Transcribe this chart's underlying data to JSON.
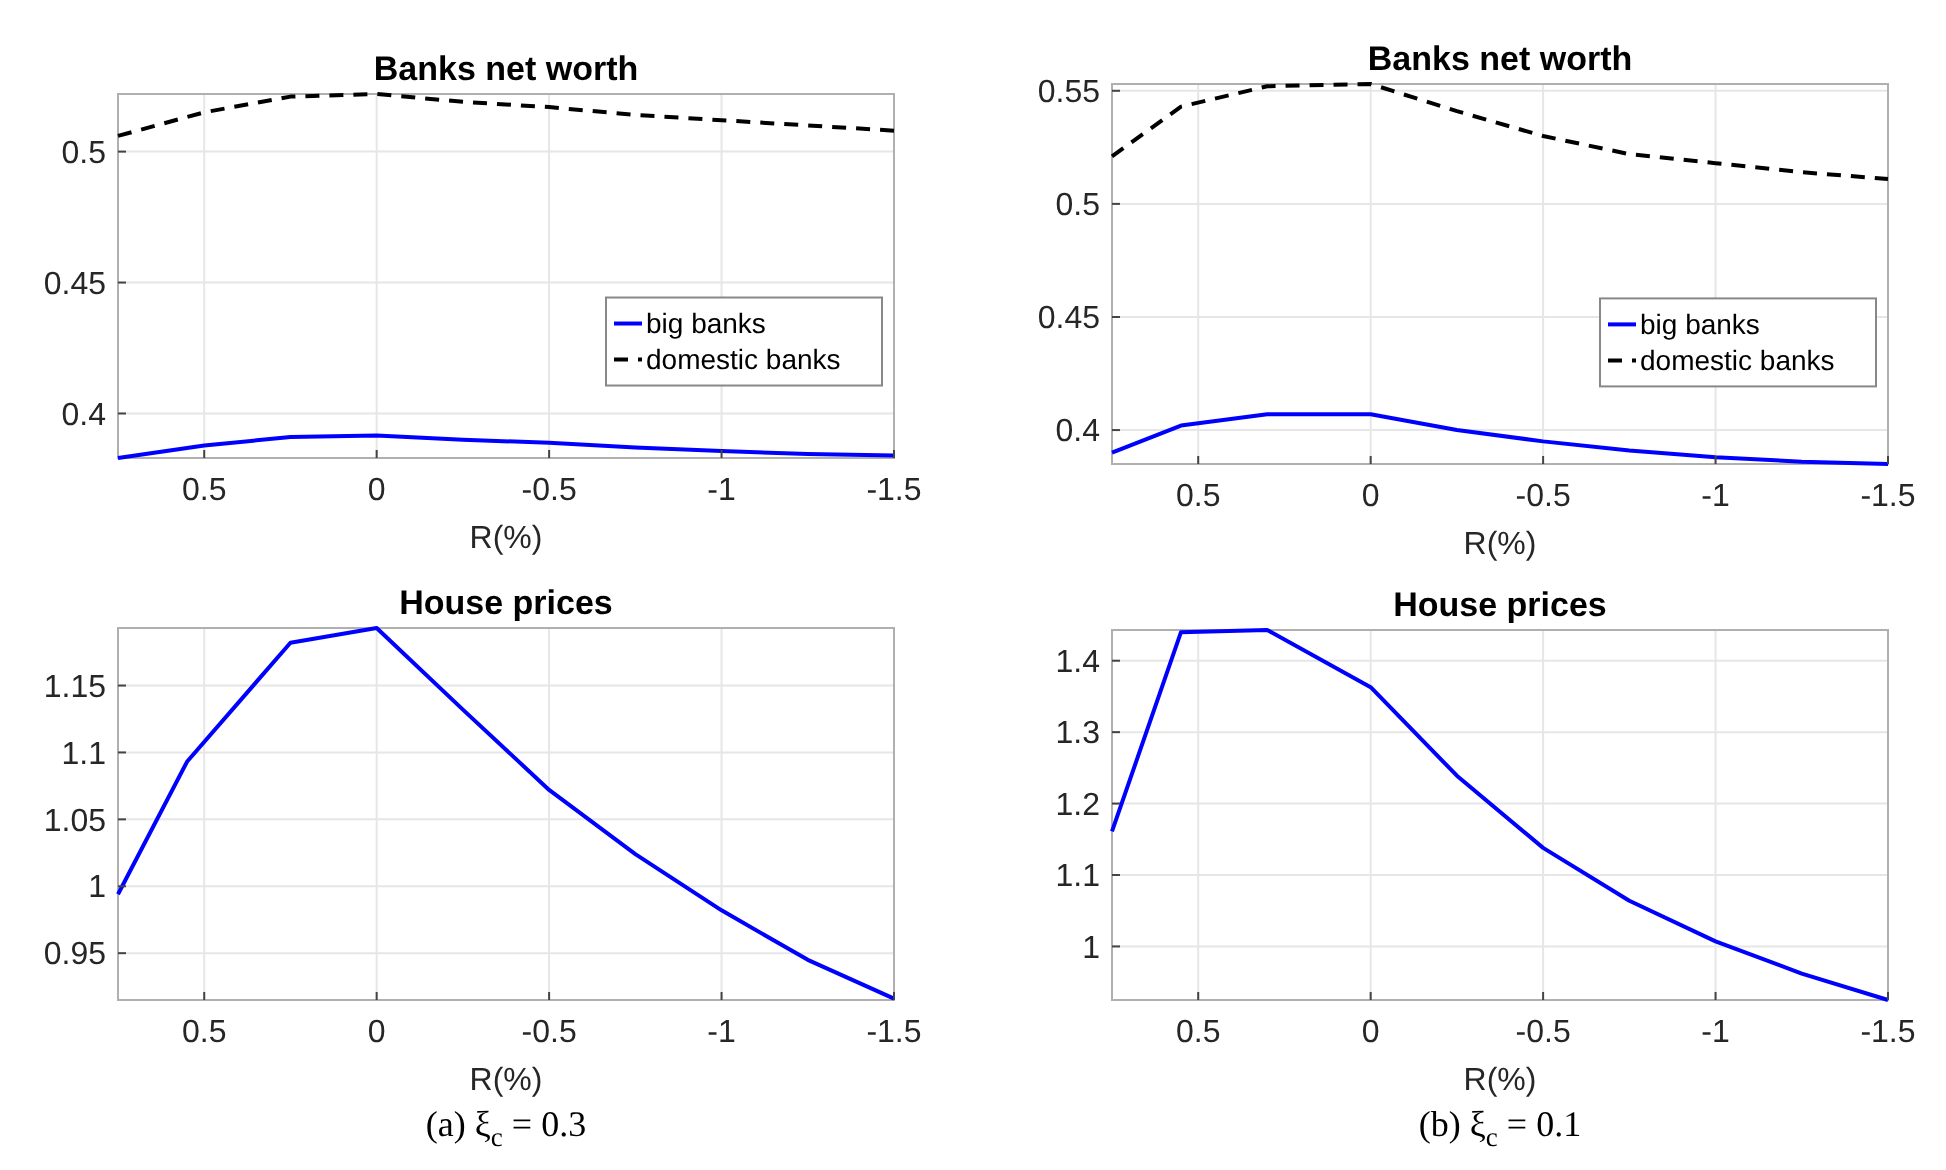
{
  "chart_data": [
    {
      "type": "line",
      "title": "Banks net worth",
      "xlabel": "R(%)",
      "x": [
        0.75,
        0.5,
        0.25,
        0,
        -0.25,
        -0.5,
        -0.75,
        -1,
        -1.25,
        -1.5
      ],
      "xlim": [
        0.75,
        -1.5
      ],
      "xticks": [
        0.5,
        0,
        -0.5,
        -1,
        -1.5
      ],
      "ylim": [
        0.383,
        0.522
      ],
      "yticks": [
        0.4,
        0.45,
        0.5
      ],
      "grid": true,
      "legend": "bottom right",
      "series": [
        {
          "name": "big banks",
          "color": "#0000ff",
          "line_style": "solid",
          "values": [
            0.383,
            0.3878,
            0.391,
            0.3916,
            0.39,
            0.3888,
            0.387,
            0.3857,
            0.3845,
            0.384
          ]
        },
        {
          "name": "domestic banks",
          "color": "#000000",
          "line_style": "dashed",
          "values": [
            0.506,
            0.515,
            0.521,
            0.522,
            0.519,
            0.517,
            0.514,
            0.512,
            0.51,
            0.508
          ]
        }
      ]
    },
    {
      "type": "line",
      "title": "Banks net worth",
      "xlabel": "R(%)",
      "x": [
        0.75,
        0.55,
        0.3,
        0,
        -0.25,
        -0.5,
        -0.75,
        -1,
        -1.25,
        -1.5
      ],
      "xlim": [
        0.75,
        -1.5
      ],
      "xticks": [
        0.5,
        0,
        -0.5,
        -1,
        -1.5
      ],
      "ylim": [
        0.385,
        0.553
      ],
      "yticks": [
        0.4,
        0.45,
        0.5,
        0.55
      ],
      "grid": true,
      "legend": "bottom right",
      "series": [
        {
          "name": "big banks",
          "color": "#0000ff",
          "line_style": "solid",
          "values": [
            0.39,
            0.402,
            0.407,
            0.407,
            0.4,
            0.395,
            0.391,
            0.388,
            0.386,
            0.385
          ]
        },
        {
          "name": "domestic banks",
          "color": "#000000",
          "line_style": "dashed",
          "values": [
            0.521,
            0.543,
            0.552,
            0.553,
            0.541,
            0.53,
            0.522,
            0.518,
            0.514,
            0.511
          ]
        }
      ]
    },
    {
      "type": "line",
      "title": "House prices",
      "xlabel": "R(%)",
      "x": [
        0.75,
        0.55,
        0.25,
        0,
        -0.25,
        -0.5,
        -0.75,
        -1,
        -1.25,
        -1.5
      ],
      "xlim": [
        0.75,
        -1.5
      ],
      "xticks": [
        0.5,
        0,
        -0.5,
        -1,
        -1.5
      ],
      "ylim": [
        0.915,
        1.193
      ],
      "yticks": [
        0.95,
        1,
        1.05,
        1.1,
        1.15
      ],
      "grid": true,
      "annotations": [
        "(a) ξ$_{c}$ = 0.3"
      ],
      "series": [
        {
          "color": "#0000ff",
          "line_style": "solid",
          "values": [
            0.994,
            1.093,
            1.182,
            1.193,
            1.132,
            1.072,
            1.024,
            0.982,
            0.945,
            0.916
          ]
        }
      ]
    },
    {
      "type": "line",
      "title": "House prices",
      "xlabel": "R(%)",
      "x": [
        0.75,
        0.55,
        0.3,
        0,
        -0.25,
        -0.5,
        -0.75,
        -1,
        -1.25,
        -1.5
      ],
      "xlim": [
        0.75,
        -1.5
      ],
      "xticks": [
        0.5,
        0,
        -0.5,
        -1,
        -1.5
      ],
      "ylim": [
        0.925,
        1.443
      ],
      "yticks": [
        1,
        1.1,
        1.2,
        1.3,
        1.4
      ],
      "grid": true,
      "annotations": [
        "(b) ξ$_{c}$ = 0.1"
      ],
      "series": [
        {
          "color": "#0000ff",
          "line_style": "solid",
          "values": [
            1.161,
            1.44,
            1.443,
            1.363,
            1.239,
            1.138,
            1.064,
            1.007,
            0.962,
            0.925
          ]
        }
      ]
    }
  ]
}
